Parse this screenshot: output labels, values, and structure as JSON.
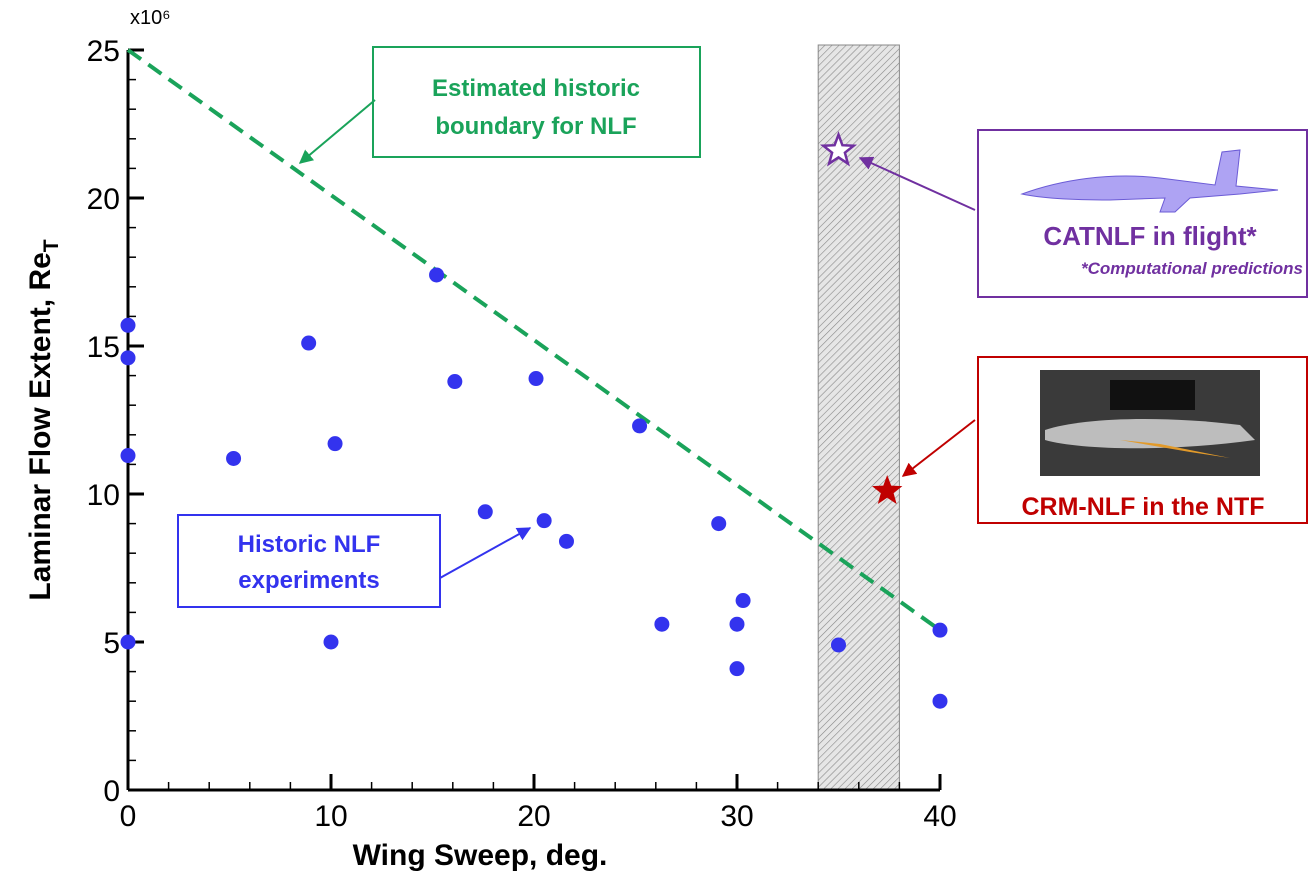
{
  "chart_data": {
    "type": "scatter",
    "xlabel": "Wing Sweep, deg.",
    "ylabel": "Laminar Flow Extent, Re",
    "ylabel_subscript": "T",
    "y_multiplier": "x10⁶",
    "xlim": [
      0,
      40
    ],
    "ylim": [
      0,
      25
    ],
    "xticks": [
      0,
      10,
      20,
      30,
      40
    ],
    "yticks": [
      0,
      5,
      10,
      15,
      20,
      25
    ],
    "xminorticks": [
      2,
      4,
      6,
      8,
      12,
      14,
      16,
      18,
      22,
      24,
      26,
      28,
      32,
      34,
      36,
      38
    ],
    "yminorticks": [
      1,
      2,
      3,
      4,
      6,
      7,
      8,
      9,
      11,
      12,
      13,
      14,
      16,
      17,
      18,
      19,
      21,
      22,
      23,
      24
    ],
    "band": {
      "x": [
        34,
        38
      ]
    },
    "boundary": {
      "label": [
        "Estimated historic",
        "boundary for NLF"
      ],
      "color": "#1aa35a",
      "x": [
        0,
        40
      ],
      "y": [
        25,
        5.4
      ]
    },
    "series": [
      {
        "name": [
          "Historic NLF",
          "experiments"
        ],
        "color": "#3333ee",
        "marker": "circle",
        "x": [
          0,
          0,
          0,
          0,
          5.2,
          8.9,
          10.2,
          10,
          15.2,
          16.1,
          17.6,
          20.1,
          20.5,
          21.6,
          25.2,
          26.3,
          29.1,
          30,
          30,
          30.3,
          35,
          40,
          40
        ],
        "values": [
          15.7,
          14.6,
          11.3,
          5.0,
          11.2,
          15.1,
          11.7,
          5.0,
          17.4,
          13.8,
          9.4,
          13.9,
          9.1,
          8.4,
          12.3,
          5.6,
          9.0,
          5.6,
          4.1,
          6.4,
          4.9,
          5.4,
          3.0
        ]
      },
      {
        "name": [
          "CATNLF in flight*"
        ],
        "note": "*Computational predictions",
        "color": "#7030a0",
        "marker": "open-star",
        "x": [
          35
        ],
        "values": [
          21.6
        ]
      },
      {
        "name": [
          "CRM-NLF in the NTF"
        ],
        "color": "#c00000",
        "marker": "star",
        "x": [
          37.4
        ],
        "values": [
          10.1
        ]
      }
    ]
  }
}
